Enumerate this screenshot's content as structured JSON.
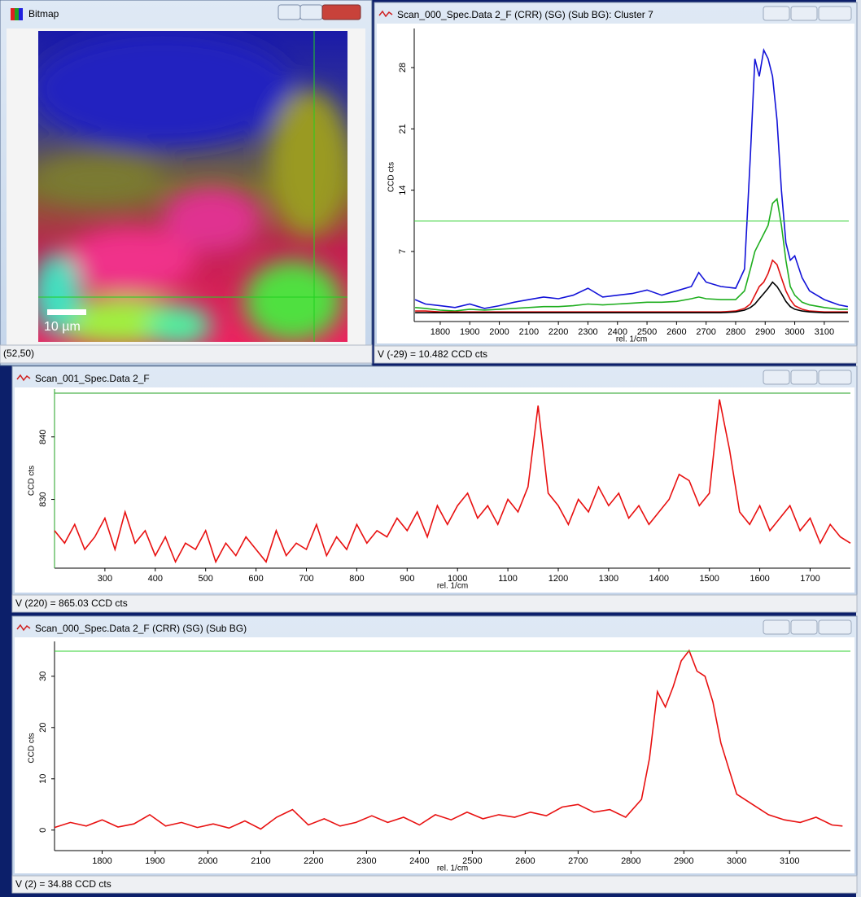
{
  "bitmap": {
    "title": "Bitmap",
    "scale_label": "10 µm",
    "status": "(52,50)"
  },
  "chart_data": [
    {
      "type": "line",
      "title": "Scan_000_Spec.Data 2_F (CRR) (SG) (Sub BG): Cluster 7",
      "status": "V (-29) = 10.482 CCD cts",
      "xlabel": "rel. 1/cm",
      "ylabel": "CCD cts",
      "x": [
        1715,
        1750,
        1800,
        1850,
        1900,
        1950,
        2000,
        2050,
        2100,
        2150,
        2200,
        2250,
        2300,
        2350,
        2400,
        2450,
        2500,
        2550,
        2600,
        2650,
        2675,
        2700,
        2750,
        2800,
        2830,
        2850,
        2865,
        2880,
        2895,
        2910,
        2925,
        2940,
        2955,
        2970,
        2985,
        3000,
        3025,
        3050,
        3100,
        3150,
        3180
      ],
      "series": [
        {
          "color": "#1212d8",
          "values": [
            1.5,
            1.0,
            0.8,
            0.6,
            1.0,
            0.5,
            0.8,
            1.2,
            1.5,
            1.8,
            1.6,
            2.0,
            2.8,
            1.8,
            2.0,
            2.2,
            2.6,
            2.0,
            2.5,
            3.0,
            4.6,
            3.5,
            3.0,
            2.8,
            5,
            18,
            29,
            27,
            30,
            29,
            27,
            22,
            14,
            8,
            6,
            6.5,
            4,
            2.5,
            1.5,
            0.9,
            0.7
          ]
        },
        {
          "color": "#1fae1f",
          "values": [
            0.6,
            0.5,
            0.3,
            0.2,
            0.4,
            0.3,
            0.4,
            0.5,
            0.6,
            0.7,
            0.7,
            0.8,
            1.0,
            0.9,
            1.0,
            1.1,
            1.2,
            1.2,
            1.3,
            1.6,
            1.8,
            1.6,
            1.5,
            1.5,
            2.5,
            5,
            7,
            8,
            9,
            10,
            12.5,
            13,
            10,
            6,
            3,
            2,
            1.2,
            0.9,
            0.6,
            0.4,
            0.4
          ]
        },
        {
          "color": "#e01010",
          "values": [
            0.2,
            0.2,
            0.1,
            0.1,
            0.1,
            0.1,
            0.1,
            0.1,
            0.1,
            0.1,
            0.1,
            0.1,
            0.1,
            0.1,
            0.1,
            0.1,
            0.1,
            0.1,
            0.1,
            0.1,
            0.1,
            0.1,
            0.1,
            0.2,
            0.5,
            1.0,
            2.0,
            3.0,
            3.5,
            4.5,
            6.0,
            5.5,
            4.0,
            2.5,
            1.5,
            0.8,
            0.4,
            0.2,
            0.1,
            0.1,
            0.1
          ]
        },
        {
          "color": "#000000",
          "values": [
            0,
            0,
            0,
            0,
            0,
            0,
            0,
            0,
            0,
            0,
            0,
            0,
            0,
            0,
            0,
            0,
            0,
            0,
            0,
            0,
            0,
            0,
            0,
            0.1,
            0.3,
            0.6,
            1.0,
            1.6,
            2.2,
            2.8,
            3.5,
            3.0,
            2.2,
            1.3,
            0.7,
            0.4,
            0.2,
            0.1,
            0,
            0,
            0
          ]
        }
      ],
      "xlim": [
        1712,
        3183
      ],
      "ylim": [
        -1,
        32
      ],
      "xticks": [
        1800,
        1900,
        2000,
        2100,
        2200,
        2300,
        2400,
        2500,
        2600,
        2700,
        2800,
        2900,
        3000,
        3100
      ],
      "yticks": [
        7,
        14,
        21,
        28
      ],
      "cursor_y": 10.482
    },
    {
      "type": "line",
      "title": "Scan_001_Spec.Data 2_F",
      "status": "V (220) = 865.03 CCD cts",
      "xlabel": "rel. 1/cm",
      "ylabel": "CCD cts",
      "x": [
        200,
        220,
        240,
        260,
        280,
        300,
        320,
        340,
        360,
        380,
        400,
        420,
        440,
        460,
        480,
        500,
        520,
        540,
        560,
        580,
        600,
        620,
        640,
        660,
        680,
        700,
        720,
        740,
        760,
        780,
        800,
        820,
        840,
        860,
        880,
        900,
        920,
        940,
        960,
        980,
        1000,
        1020,
        1040,
        1060,
        1080,
        1100,
        1120,
        1140,
        1160,
        1180,
        1200,
        1220,
        1240,
        1260,
        1280,
        1300,
        1320,
        1340,
        1360,
        1380,
        1400,
        1420,
        1440,
        1460,
        1480,
        1500,
        1520,
        1540,
        1560,
        1580,
        1600,
        1620,
        1640,
        1660,
        1680,
        1700,
        1720,
        1740,
        1760,
        1780
      ],
      "series": [
        {
          "color": "#e81010",
          "values": [
            825,
            823,
            826,
            822,
            824,
            827,
            822,
            828,
            823,
            825,
            821,
            824,
            820,
            823,
            822,
            825,
            820,
            823,
            821,
            824,
            822,
            820,
            825,
            821,
            823,
            822,
            826,
            821,
            824,
            822,
            826,
            823,
            825,
            824,
            827,
            825,
            828,
            824,
            829,
            826,
            829,
            831,
            827,
            829,
            826,
            830,
            828,
            832,
            845,
            831,
            829,
            826,
            830,
            828,
            832,
            829,
            831,
            827,
            829,
            826,
            828,
            830,
            834,
            833,
            829,
            831,
            846,
            838,
            828,
            826,
            829,
            825,
            827,
            829,
            825,
            827,
            823,
            826,
            824,
            823
          ]
        }
      ],
      "xlim": [
        200,
        1780
      ],
      "ylim": [
        819,
        847
      ],
      "xticks": [
        300,
        400,
        500,
        600,
        700,
        800,
        900,
        1000,
        1100,
        1200,
        1300,
        1400,
        1500,
        1600,
        1700
      ],
      "yticks": [
        830,
        840
      ]
    },
    {
      "type": "line",
      "title": "Scan_000_Spec.Data 2_F (CRR) (SG) (Sub BG)",
      "status": "V (2) = 34.88 CCD cts",
      "xlabel": "rel. 1/cm",
      "ylabel": "CCD cts",
      "x": [
        1710,
        1740,
        1770,
        1800,
        1830,
        1860,
        1890,
        1920,
        1950,
        1980,
        2010,
        2040,
        2070,
        2100,
        2130,
        2160,
        2190,
        2220,
        2250,
        2280,
        2310,
        2340,
        2370,
        2400,
        2430,
        2460,
        2490,
        2520,
        2550,
        2580,
        2610,
        2640,
        2670,
        2700,
        2730,
        2760,
        2790,
        2820,
        2835,
        2850,
        2865,
        2880,
        2895,
        2910,
        2925,
        2940,
        2955,
        2970,
        2985,
        3000,
        3030,
        3060,
        3090,
        3120,
        3150,
        3180,
        3200
      ],
      "series": [
        {
          "color": "#e81010",
          "values": [
            0.5,
            1.5,
            0.8,
            2,
            0.6,
            1.2,
            3,
            0.8,
            1.5,
            0.5,
            1.2,
            0.4,
            1.8,
            0.2,
            2.5,
            4,
            1,
            2.2,
            0.8,
            1.5,
            2.8,
            1.5,
            2.5,
            1,
            3,
            2,
            3.5,
            2.2,
            3,
            2.5,
            3.5,
            2.8,
            4.5,
            5,
            3.5,
            4,
            2.5,
            6,
            14,
            27,
            24,
            28,
            33,
            35,
            31,
            30,
            25,
            17,
            12,
            7,
            5,
            3,
            2,
            1.5,
            2.5,
            1,
            0.8
          ]
        }
      ],
      "xlim": [
        1710,
        3215
      ],
      "ylim": [
        -4,
        36
      ],
      "xticks": [
        1800,
        1900,
        2000,
        2100,
        2200,
        2300,
        2400,
        2500,
        2600,
        2700,
        2800,
        2900,
        3000,
        3100
      ],
      "yticks": [
        0,
        10,
        20,
        30
      ],
      "cursor_y": 34.88
    }
  ]
}
